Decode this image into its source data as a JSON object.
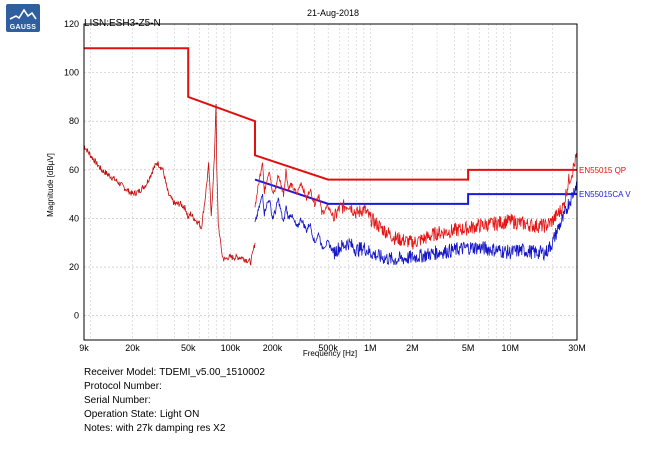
{
  "header": {
    "date": "21-Aug-2018",
    "title": "LISN:ESH3-Z5-N",
    "logo_text": "GAUSS"
  },
  "info": [
    {
      "label": "Receiver Model:",
      "value": "TDEMI_v5.00_1510002"
    },
    {
      "label": "Protocol Number:",
      "value": ""
    },
    {
      "label": "Serial Number:",
      "value": ""
    },
    {
      "label": "Operation State:",
      "value": "Light ON"
    },
    {
      "label": "Notes:",
      "value": "with 27k damping res X2"
    }
  ],
  "chart_data": {
    "type": "line",
    "xlabel": "Frequency [Hz]",
    "ylabel": "Magnitude [dBµV]",
    "xscale": "log",
    "xlim": [
      9000,
      30000000
    ],
    "ylim": [
      -10,
      120
    ],
    "grid": true,
    "xticks": [
      {
        "v": 9000,
        "label": "9k"
      },
      {
        "v": 20000,
        "label": "20k"
      },
      {
        "v": 50000,
        "label": "50k"
      },
      {
        "v": 100000,
        "label": "100k"
      },
      {
        "v": 200000,
        "label": "200k"
      },
      {
        "v": 500000,
        "label": "500k"
      },
      {
        "v": 1000000,
        "label": "1M"
      },
      {
        "v": 2000000,
        "label": "2M"
      },
      {
        "v": 5000000,
        "label": "5M"
      },
      {
        "v": 10000000,
        "label": "10M"
      },
      {
        "v": 30000000,
        "label": "30M"
      }
    ],
    "yticks": [
      0,
      20,
      40,
      60,
      80,
      100,
      120
    ],
    "series": [
      {
        "name": "EN55015 QP",
        "role": "limit",
        "color": "#e01010",
        "x": [
          9000,
          50000,
          50000,
          150000,
          150000,
          500000,
          500000,
          5000000,
          5000000,
          30000000
        ],
        "y": [
          110,
          110,
          90,
          80,
          66,
          56,
          56,
          56,
          60,
          60
        ]
      },
      {
        "name": "EN55015CA V",
        "role": "limit",
        "color": "#1a1adc",
        "x": [
          150000,
          500000,
          500000,
          5000000,
          5000000,
          30000000
        ],
        "y": [
          56,
          46,
          46,
          46,
          50,
          50
        ]
      },
      {
        "role": "measurement",
        "color": "#c41010",
        "x": [
          9000,
          10000,
          12000,
          15000,
          18000,
          20000,
          22000,
          25000,
          28000,
          30000,
          33000,
          36000,
          40000,
          44000,
          48000,
          50000,
          52000,
          55000,
          60000,
          62000,
          66000,
          70000,
          73000,
          75000,
          77000,
          79000,
          80000,
          82000,
          85000,
          88000,
          92000,
          96000,
          100000,
          110000,
          120000,
          130000,
          140000,
          145000,
          150000
        ],
        "y": [
          70,
          66,
          60,
          56,
          52,
          50,
          51,
          54,
          60,
          63,
          60,
          50,
          46,
          46,
          44,
          40,
          42,
          40,
          38,
          36,
          48,
          62,
          42,
          52,
          66,
          88,
          60,
          38,
          30,
          24,
          23,
          24,
          24,
          24,
          24,
          23,
          22,
          26,
          30
        ]
      },
      {
        "role": "measurement",
        "color": "#e51515",
        "x": [
          150000,
          160000,
          170000,
          175000,
          180000,
          190000,
          200000,
          210000,
          220000,
          240000,
          250000,
          260000,
          270000,
          300000,
          320000,
          350000,
          370000,
          400000,
          430000,
          450000,
          500000,
          550000,
          600000,
          700000,
          800000,
          900000,
          1000000,
          1200000,
          1500000,
          2000000,
          2500000,
          3000000,
          4000000,
          5000000,
          6000000,
          8000000,
          10000000,
          12000000,
          15000000,
          18000000,
          20000000,
          22000000,
          24000000,
          26000000,
          28000000,
          30000000
        ],
        "y": [
          45,
          55,
          64,
          50,
          55,
          60,
          50,
          52,
          58,
          50,
          60,
          52,
          54,
          50,
          55,
          48,
          52,
          46,
          50,
          42,
          45,
          40,
          44,
          46,
          42,
          44,
          40,
          36,
          32,
          30,
          32,
          34,
          35,
          36,
          37,
          38,
          39,
          38,
          37,
          37,
          39,
          42,
          45,
          55,
          60,
          66
        ]
      },
      {
        "role": "measurement",
        "color": "#1515c8",
        "x": [
          150000,
          160000,
          170000,
          175000,
          180000,
          190000,
          200000,
          210000,
          220000,
          240000,
          250000,
          260000,
          270000,
          300000,
          320000,
          350000,
          370000,
          400000,
          430000,
          450000,
          500000,
          550000,
          600000,
          700000,
          800000,
          900000,
          1000000,
          1200000,
          1500000,
          2000000,
          2500000,
          3000000,
          4000000,
          5000000,
          6000000,
          8000000,
          10000000,
          12000000,
          15000000,
          18000000,
          20000000,
          22000000,
          24000000,
          26000000,
          28000000,
          30000000
        ],
        "y": [
          38,
          44,
          50,
          42,
          45,
          48,
          40,
          43,
          48,
          38,
          45,
          40,
          42,
          36,
          40,
          35,
          38,
          30,
          34,
          28,
          30,
          26,
          28,
          30,
          27,
          28,
          26,
          24,
          23,
          24,
          25,
          26,
          27,
          28,
          28,
          27,
          26,
          27,
          26,
          26,
          30,
          36,
          40,
          46,
          50,
          55
        ]
      }
    ]
  }
}
